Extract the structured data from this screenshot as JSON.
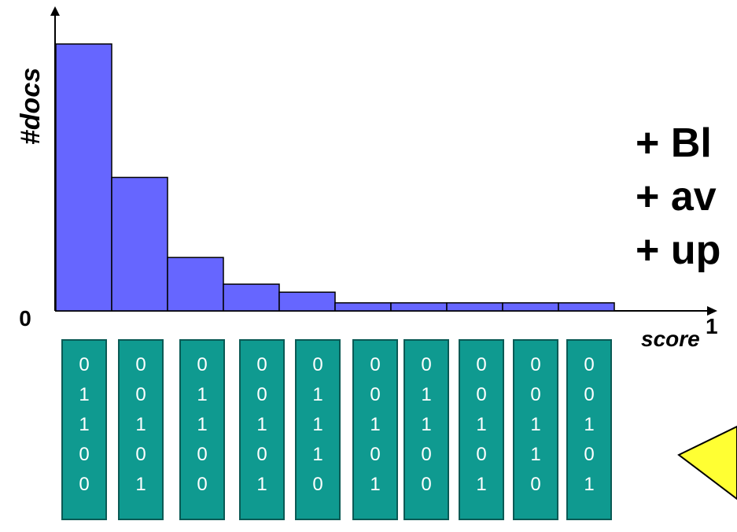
{
  "chart_data": {
    "type": "bar",
    "ylabel": "#docs",
    "xlabel": "score",
    "y_origin_label": "0",
    "x_end_label": "1",
    "values": [
      100,
      50,
      20,
      10,
      7,
      3,
      3,
      3,
      3,
      3
    ],
    "ylim": [
      0,
      110
    ],
    "bar_color": "#6666ff",
    "bar_edge_color": "#000000"
  },
  "bit_vectors": [
    [
      "0",
      "1",
      "1",
      "0",
      "0"
    ],
    [
      "0",
      "0",
      "1",
      "0",
      "1"
    ],
    [
      "0",
      "1",
      "1",
      "0",
      "0"
    ],
    [
      "0",
      "0",
      "1",
      "0",
      "1"
    ],
    [
      "0",
      "1",
      "1",
      "1",
      "0"
    ],
    [
      "0",
      "0",
      "1",
      "0",
      "1"
    ],
    [
      "0",
      "1",
      "1",
      "0",
      "0"
    ],
    [
      "0",
      "0",
      "1",
      "0",
      "1"
    ],
    [
      "0",
      "0",
      "1",
      "1",
      "0"
    ],
    [
      "0",
      "0",
      "1",
      "0",
      "1"
    ]
  ],
  "bullets": [
    "+ Bl",
    "+ av",
    "+ up"
  ],
  "colors": {
    "card": "#0f9a90",
    "callout": "#ffff33"
  }
}
